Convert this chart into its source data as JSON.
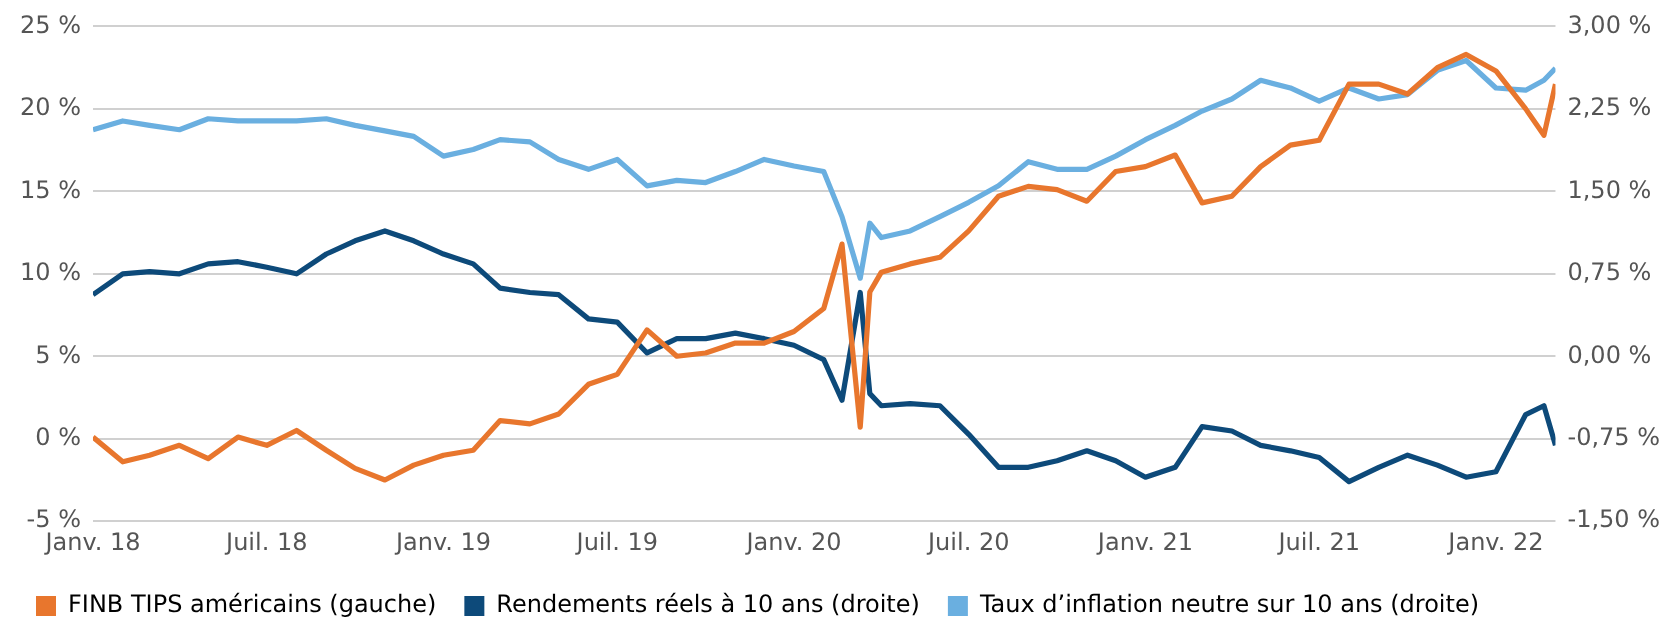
{
  "chart_data": {
    "type": "line",
    "x": [
      "2018-01-01",
      "2018-02-01",
      "2018-03-01",
      "2018-04-01",
      "2018-05-01",
      "2018-06-01",
      "2018-07-01",
      "2018-08-01",
      "2018-09-01",
      "2018-10-01",
      "2018-11-01",
      "2018-12-01",
      "2019-01-01",
      "2019-02-01",
      "2019-03-01",
      "2019-04-01",
      "2019-05-01",
      "2019-06-01",
      "2019-07-01",
      "2019-08-01",
      "2019-09-01",
      "2019-10-01",
      "2019-11-01",
      "2019-12-01",
      "2020-01-01",
      "2020-02-01",
      "2020-02-20",
      "2020-03-10",
      "2020-03-20",
      "2020-04-01",
      "2020-05-01",
      "2020-06-01",
      "2020-07-01",
      "2020-08-01",
      "2020-09-01",
      "2020-10-01",
      "2020-11-01",
      "2020-12-01",
      "2021-01-01",
      "2021-02-01",
      "2021-03-01",
      "2021-04-01",
      "2021-05-01",
      "2021-06-01",
      "2021-07-01",
      "2021-08-01",
      "2021-09-01",
      "2021-10-01",
      "2021-11-01",
      "2021-12-01",
      "2022-01-01",
      "2022-02-01",
      "2022-02-20",
      "2022-03-04"
    ],
    "series": [
      {
        "name": "FINB TIPS américains (gauche)",
        "color": "#e8762d",
        "values": [
          0.1,
          -1.4,
          -1.0,
          -0.4,
          -1.2,
          0.1,
          -0.4,
          0.5,
          -0.7,
          -1.8,
          -2.5,
          -1.6,
          -1.0,
          -0.7,
          1.1,
          0.9,
          1.5,
          3.3,
          3.9,
          6.6,
          5.0,
          5.2,
          5.8,
          5.8,
          6.5,
          7.9,
          11.8,
          0.7,
          8.9,
          10.1,
          10.6,
          11.0,
          12.6,
          14.7,
          15.3,
          15.1,
          14.4,
          16.2,
          16.5,
          17.2,
          14.3,
          14.7,
          16.5,
          17.8,
          18.1,
          21.5,
          21.5,
          20.9,
          22.5,
          23.3,
          22.3,
          20.0,
          18.4,
          21.5
        ]
      },
      {
        "name": "Rendements réels à 10 ans (droite)",
        "color": "#0d4a7a",
        "axis": "y2",
        "values": [
          0.56,
          0.75,
          0.77,
          0.75,
          0.84,
          0.86,
          0.81,
          0.75,
          0.93,
          1.05,
          1.14,
          1.05,
          0.93,
          0.84,
          0.62,
          0.58,
          0.56,
          0.34,
          0.31,
          0.03,
          0.16,
          0.16,
          0.21,
          0.16,
          0.1,
          -0.03,
          -0.4,
          0.58,
          -0.34,
          -0.45,
          -0.43,
          -0.45,
          -0.71,
          -1.01,
          -1.01,
          -0.95,
          -0.86,
          -0.95,
          -1.1,
          -1.01,
          -0.64,
          -0.68,
          -0.81,
          -0.86,
          -0.92,
          -1.14,
          -1.01,
          -0.9,
          -0.99,
          -1.1,
          -1.05,
          -0.53,
          -0.45,
          -0.81
        ]
      },
      {
        "name": "Taux d’inflation neutre sur 10 ans (droite)",
        "color": "#6aafe0",
        "axis": "y2",
        "values": [
          2.06,
          2.14,
          2.1,
          2.06,
          2.16,
          2.14,
          2.14,
          2.14,
          2.16,
          2.1,
          2.05,
          2.0,
          1.82,
          1.88,
          1.97,
          1.95,
          1.79,
          1.7,
          1.79,
          1.55,
          1.6,
          1.58,
          1.68,
          1.79,
          1.73,
          1.68,
          1.27,
          0.71,
          1.21,
          1.08,
          1.14,
          1.27,
          1.4,
          1.55,
          1.77,
          1.7,
          1.7,
          1.82,
          1.97,
          2.1,
          2.23,
          2.34,
          2.51,
          2.44,
          2.32,
          2.44,
          2.34,
          2.38,
          2.6,
          2.69,
          2.44,
          2.42,
          2.51,
          2.62
        ]
      }
    ],
    "xlim": [
      "2018-01-01",
      "2022-03-04"
    ],
    "xticks": [
      {
        "value": "2018-01-01",
        "label": "Janv. 18"
      },
      {
        "value": "2018-07-01",
        "label": "Juil. 18"
      },
      {
        "value": "2019-01-01",
        "label": "Janv. 19"
      },
      {
        "value": "2019-07-01",
        "label": "Juil. 19"
      },
      {
        "value": "2020-01-01",
        "label": "Janv. 20"
      },
      {
        "value": "2020-07-01",
        "label": "Juil. 20"
      },
      {
        "value": "2021-01-01",
        "label": "Janv. 21"
      },
      {
        "value": "2021-07-01",
        "label": "Juil. 21"
      },
      {
        "value": "2022-01-01",
        "label": "Janv. 22"
      }
    ],
    "ylim": [
      -5,
      25
    ],
    "yticks": [
      {
        "value": -5,
        "label": "-5 %"
      },
      {
        "value": 0,
        "label": "0 %"
      },
      {
        "value": 5,
        "label": "5 %"
      },
      {
        "value": 10,
        "label": "10 %"
      },
      {
        "value": 15,
        "label": "15 %"
      },
      {
        "value": 20,
        "label": "20 %"
      },
      {
        "value": 25,
        "label": "25 %"
      }
    ],
    "y2lim": [
      -1.5,
      3.0
    ],
    "y2ticks": [
      {
        "value": -1.5,
        "label": "-1,50 %"
      },
      {
        "value": -0.75,
        "label": "-0,75 %"
      },
      {
        "value": 0,
        "label": "0,00 %"
      },
      {
        "value": 0.75,
        "label": "0,75 %"
      },
      {
        "value": 1.5,
        "label": "1,50 %"
      },
      {
        "value": 2.25,
        "label": "2,25 %"
      },
      {
        "value": 3.0,
        "label": "3,00 %"
      }
    ],
    "grid": "y",
    "legend": "bottom",
    "marker": "none"
  }
}
